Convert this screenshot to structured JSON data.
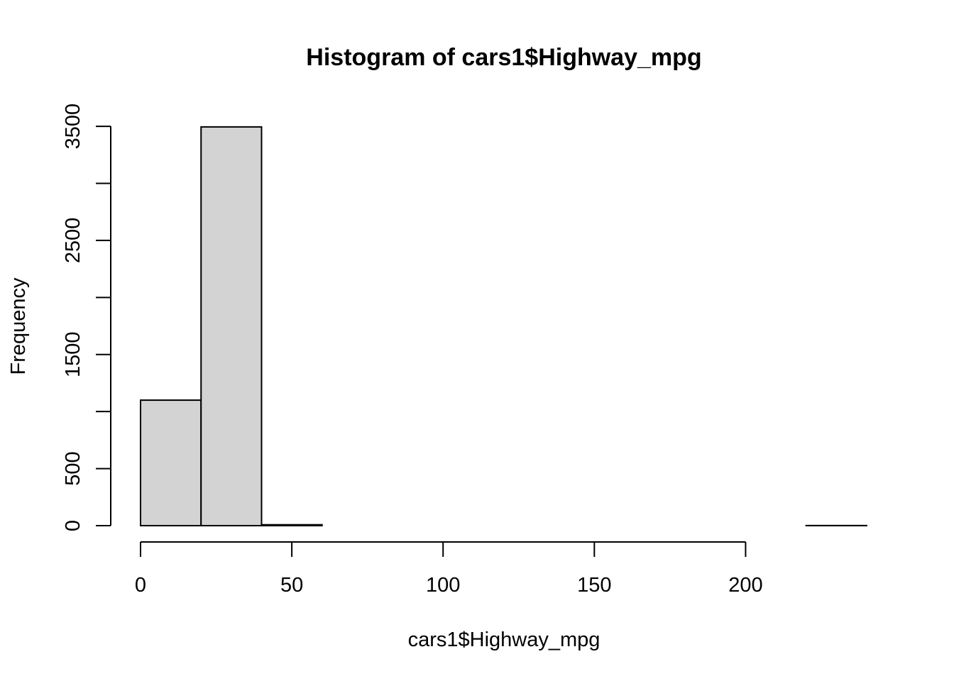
{
  "chart_data": {
    "type": "bar",
    "title": "Histogram of cars1$Highway_mpg",
    "xlabel": "cars1$Highway_mpg",
    "ylabel": "Frequency",
    "bins": [
      {
        "start": 0,
        "end": 20,
        "count": 1100
      },
      {
        "start": 20,
        "end": 40,
        "count": 3495
      },
      {
        "start": 40,
        "end": 60,
        "count": 8
      },
      {
        "start": 60,
        "end": 80,
        "count": 0
      },
      {
        "start": 80,
        "end": 100,
        "count": 0
      },
      {
        "start": 100,
        "end": 120,
        "count": 0
      },
      {
        "start": 120,
        "end": 140,
        "count": 0
      },
      {
        "start": 140,
        "end": 160,
        "count": 0
      },
      {
        "start": 160,
        "end": 180,
        "count": 0
      },
      {
        "start": 180,
        "end": 200,
        "count": 0
      },
      {
        "start": 200,
        "end": 220,
        "count": 0
      },
      {
        "start": 220,
        "end": 240,
        "count": 1
      }
    ],
    "xlim": [
      0,
      240
    ],
    "ylim": [
      0,
      3500
    ],
    "x_ticks": [
      "0",
      "50",
      "100",
      "150",
      "200"
    ],
    "y_ticks": [
      "0",
      "500",
      "1500",
      "2500",
      "3500"
    ],
    "grid": false,
    "bar_color": "#d3d3d3",
    "border_color": "#000000"
  }
}
